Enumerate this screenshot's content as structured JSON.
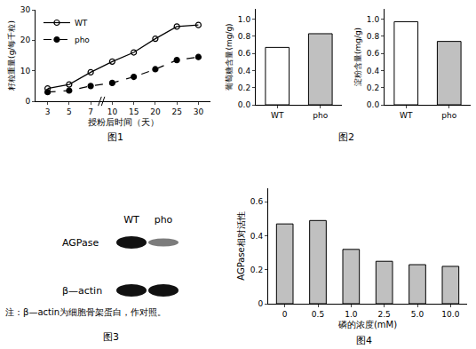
{
  "chart_data": [
    {
      "type": "line",
      "caption": "图1",
      "x_label": "授粉后时间（天）",
      "y_label": "籽粒重量(g/每千粒)",
      "categories": [
        "3",
        "5",
        "7",
        "10",
        "15",
        "20",
        "25",
        "30"
      ],
      "series": [
        {
          "name": "WT",
          "color": "#000000",
          "marker": "open circle",
          "line_style": "solid",
          "values": [
            4.2,
            5.5,
            9.5,
            13,
            16,
            20.5,
            24.5,
            25
          ]
        },
        {
          "name": "pho",
          "color": "#000000",
          "marker": "filled circle",
          "line_style": "dash",
          "values": [
            3,
            3.5,
            5,
            6,
            8,
            10.5,
            13.5,
            14.5
          ]
        }
      ],
      "ylim": [
        0,
        30
      ],
      "yticks": [
        0,
        10,
        20,
        30
      ],
      "grid": false,
      "legend": "top-left"
    },
    {
      "type": "bar",
      "y_label": "葡萄糖含量(mg/g)",
      "categories": [
        "WT",
        "pho"
      ],
      "values": [
        0.67,
        0.83
      ],
      "colors": [
        "#ffffff",
        "#c0c0c0"
      ],
      "ylim": [
        0,
        1.12
      ],
      "yticks": [
        {
          "value": 0,
          "label": "0.0"
        },
        0.2,
        0.4,
        0.6,
        0.8,
        {
          "value": 1,
          "label": "1.0"
        }
      ],
      "grid": false
    },
    {
      "type": "bar",
      "caption": "图2",
      "y_label": "淀粉含量(mg/g)",
      "categories": [
        "WT",
        "pho"
      ],
      "values": [
        0.97,
        0.74
      ],
      "colors": [
        "#ffffff",
        "#c0c0c0"
      ],
      "ylim": [
        0,
        1.12
      ],
      "yticks": [
        {
          "value": 0,
          "label": "0.0"
        },
        0.2,
        0.4,
        0.6,
        0.8,
        {
          "value": 1,
          "label": "1.0"
        }
      ],
      "grid": false
    },
    {
      "type": "bar",
      "caption": "图4",
      "x_label": "磷的浓度(mM)",
      "y_label": "AGPase相对活性",
      "categories": [
        "0",
        "0.5",
        "1.0",
        "2.5",
        "5.0",
        "10.0"
      ],
      "values": [
        0.47,
        0.49,
        0.32,
        0.25,
        0.23,
        0.22
      ],
      "color": "#c0c0c0",
      "ylim": [
        0,
        0.68
      ],
      "yticks": [
        0,
        0.2,
        0.4,
        0.6
      ],
      "grid": false
    }
  ],
  "blot": {
    "caption": "图3",
    "lanes": [
      "WT",
      "pho"
    ],
    "bands": [
      {
        "label": "AGPase",
        "intensity": [
          1,
          0.4
        ]
      },
      {
        "label": "β—actin",
        "intensity": [
          1,
          1
        ]
      }
    ],
    "note": "注：β—actin为细胞骨架蛋白，作对照。"
  }
}
